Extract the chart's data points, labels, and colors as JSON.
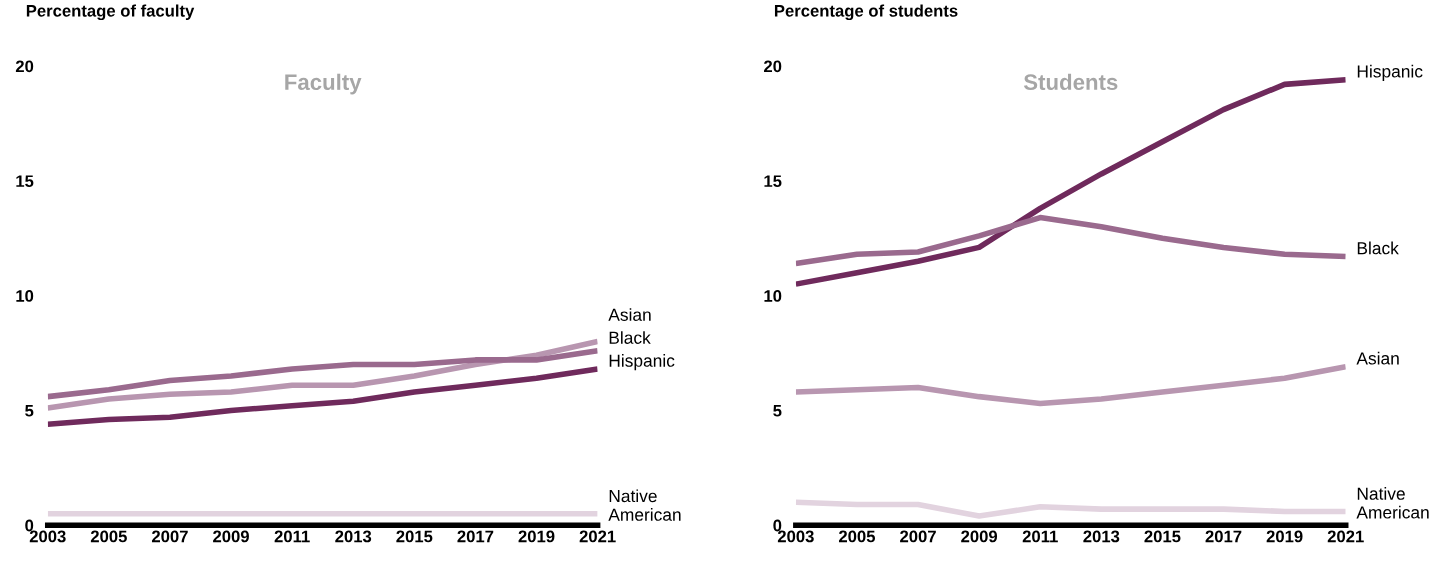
{
  "chart_data": [
    {
      "type": "line",
      "title": "Faculty",
      "ylabel": "Percentage of faculty",
      "x": [
        2003,
        2005,
        2007,
        2009,
        2011,
        2013,
        2015,
        2017,
        2019,
        2021
      ],
      "xlim": [
        2003,
        2021
      ],
      "xticks": [
        2003,
        2005,
        2007,
        2009,
        2011,
        2013,
        2015,
        2017,
        2019,
        2021
      ],
      "ylim": [
        0,
        20
      ],
      "yticks": [
        0,
        5,
        10,
        15,
        20
      ],
      "grid": false,
      "legend": false,
      "marker": "none",
      "line_style": "solid",
      "series": [
        {
          "name": "Asian",
          "color": "#b896b0",
          "values": [
            5.1,
            5.5,
            5.7,
            5.8,
            6.1,
            6.1,
            6.5,
            7.0,
            7.4,
            8.0
          ]
        },
        {
          "name": "Black",
          "color": "#9a6a8e",
          "values": [
            5.6,
            5.9,
            6.3,
            6.5,
            6.8,
            7.0,
            7.0,
            7.2,
            7.2,
            7.6
          ]
        },
        {
          "name": "Hispanic",
          "color": "#6f2a5c",
          "values": [
            4.4,
            4.6,
            4.7,
            5.0,
            5.2,
            5.4,
            5.8,
            6.1,
            6.4,
            6.8
          ]
        },
        {
          "name": "Native\nAmerican",
          "color": "#e2d3df",
          "values": [
            0.5,
            0.5,
            0.5,
            0.5,
            0.5,
            0.5,
            0.5,
            0.5,
            0.5,
            0.5
          ]
        }
      ]
    },
    {
      "type": "line",
      "title": "Students",
      "ylabel": "Percentage of students",
      "x": [
        2003,
        2005,
        2007,
        2009,
        2011,
        2013,
        2015,
        2017,
        2019,
        2021
      ],
      "xlim": [
        2003,
        2021
      ],
      "xticks": [
        2003,
        2005,
        2007,
        2009,
        2011,
        2013,
        2015,
        2017,
        2019,
        2021
      ],
      "ylim": [
        0,
        20
      ],
      "yticks": [
        0,
        5,
        10,
        15,
        20
      ],
      "grid": false,
      "legend": false,
      "marker": "none",
      "line_style": "solid",
      "series": [
        {
          "name": "Hispanic",
          "color": "#6f2a5c",
          "values": [
            10.5,
            11.0,
            11.5,
            12.1,
            13.8,
            15.3,
            16.7,
            18.1,
            19.2,
            19.4
          ]
        },
        {
          "name": "Black",
          "color": "#9a6a8e",
          "values": [
            11.4,
            11.8,
            11.9,
            12.6,
            13.4,
            13.0,
            12.5,
            12.1,
            11.8,
            11.7
          ]
        },
        {
          "name": "Asian",
          "color": "#b896b0",
          "values": [
            5.8,
            5.9,
            6.0,
            5.6,
            5.3,
            5.5,
            5.8,
            6.1,
            6.4,
            6.9
          ]
        },
        {
          "name": "Native\nAmerican",
          "color": "#e2d3df",
          "values": [
            1.0,
            0.9,
            0.9,
            0.4,
            0.8,
            0.7,
            0.7,
            0.7,
            0.6,
            0.6
          ]
        }
      ]
    }
  ]
}
